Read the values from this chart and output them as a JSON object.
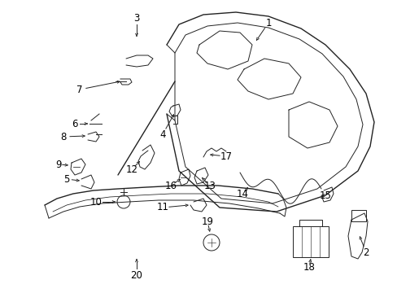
{
  "background_color": "#ffffff",
  "line_color": "#222222",
  "text_color": "#000000",
  "figsize": [
    4.89,
    3.6
  ],
  "dpi": 100
}
